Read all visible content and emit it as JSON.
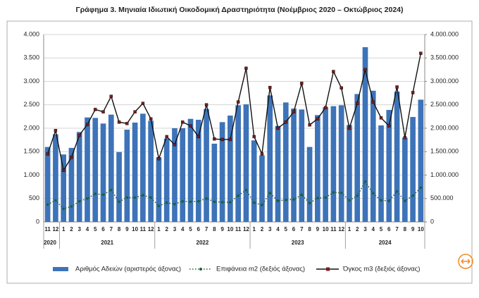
{
  "chart_data": {
    "type": "bar",
    "title": "Γράφημα 3. Μηνιαία Ιδιωτική Οικοδομική Δραστηριότητα (Νοέμβριος 2020 – Οκτώβριος 2024)",
    "categories": [
      "11",
      "12",
      "1",
      "2",
      "3",
      "4",
      "5",
      "6",
      "7",
      "8",
      "9",
      "10",
      "11",
      "12",
      "1",
      "2",
      "3",
      "4",
      "5",
      "6",
      "7",
      "8",
      "9",
      "10",
      "11",
      "12",
      "1",
      "2",
      "3",
      "4",
      "5",
      "6",
      "7",
      "8",
      "9",
      "10",
      "11",
      "12",
      "1",
      "2",
      "3",
      "4",
      "5",
      "6",
      "7",
      "8",
      "9",
      "10"
    ],
    "years": [
      "2020",
      "2021",
      "2022",
      "2023",
      "2024"
    ],
    "series": [
      {
        "name": "Αριθμός Αδειών (αριστερός άξονας)",
        "type": "bar",
        "color": "#3d73b8",
        "values": [
          1600,
          1870,
          1440,
          1580,
          1920,
          2230,
          2220,
          2100,
          2290,
          1490,
          1970,
          2120,
          2310,
          2160,
          1380,
          1780,
          2000,
          2000,
          2200,
          2180,
          2410,
          1670,
          2130,
          2270,
          2490,
          2510,
          1740,
          1420,
          2700,
          2050,
          2550,
          2420,
          2400,
          1600,
          2280,
          2450,
          2470,
          2490,
          2070,
          2730,
          3730,
          2800,
          2060,
          2390,
          2780,
          1800,
          2240,
          2610
        ]
      },
      {
        "name": "Επιφάνεια m2 (δεξιός άξονας)",
        "type": "line",
        "axis": "y2",
        "color": "#1f5f3a",
        "dashed": true,
        "marker": "circle",
        "values": [
          370000,
          460000,
          280000,
          330000,
          440000,
          500000,
          600000,
          580000,
          680000,
          430000,
          520000,
          520000,
          570000,
          520000,
          340000,
          410000,
          380000,
          440000,
          430000,
          440000,
          500000,
          430000,
          420000,
          420000,
          560000,
          680000,
          410000,
          360000,
          620000,
          450000,
          470000,
          480000,
          580000,
          400000,
          510000,
          520000,
          630000,
          620000,
          460000,
          560000,
          860000,
          610000,
          460000,
          450000,
          650000,
          450000,
          560000,
          730000
        ]
      },
      {
        "name": "Όγκος m3 (δεξιός άξονας)",
        "type": "line",
        "axis": "y2",
        "color": "#111111",
        "marker_color": "#7b1c1c",
        "marker": "square",
        "values": [
          1450000,
          1950000,
          1100000,
          1380000,
          1850000,
          2080000,
          2400000,
          2350000,
          2680000,
          2130000,
          2100000,
          2350000,
          2530000,
          2200000,
          1350000,
          1820000,
          1650000,
          2130000,
          2050000,
          1820000,
          2500000,
          1770000,
          1760000,
          1760000,
          2560000,
          3280000,
          1820000,
          1450000,
          2870000,
          2000000,
          2130000,
          2350000,
          2960000,
          2070000,
          2200000,
          2440000,
          3210000,
          2860000,
          2000000,
          2530000,
          3250000,
          2560000,
          2220000,
          2050000,
          2880000,
          1800000,
          2760000,
          3600000
        ]
      }
    ],
    "ylim": [
      0,
      4000
    ],
    "yticks": [
      0,
      {
        "value": 500,
        "label": "500"
      },
      {
        "value": 1000,
        "label": "1.000"
      },
      {
        "value": 1500,
        "label": "1.500"
      },
      {
        "value": 2000,
        "label": "2.000"
      },
      {
        "value": 2500,
        "label": "2.500"
      },
      {
        "value": 3000,
        "label": "3.000"
      },
      {
        "value": 3500,
        "label": "3.500"
      },
      {
        "value": 4000,
        "label": "4.000"
      }
    ],
    "y2lim": [
      0,
      4000000
    ],
    "y2ticks": [
      0,
      {
        "value": 500000,
        "label": "500.000"
      },
      {
        "value": 1000000,
        "label": "1.000.000"
      },
      {
        "value": 1500000,
        "label": "1.500.000"
      },
      {
        "value": 2000000,
        "label": "2.000.000"
      },
      {
        "value": 2500000,
        "label": "2.500.000"
      },
      {
        "value": 3000000,
        "label": "3.000.000"
      },
      {
        "value": 3500000,
        "label": "3.500.000"
      },
      {
        "value": 4000000,
        "label": "4.000.000"
      }
    ],
    "grid": true,
    "legend": "bottom"
  }
}
